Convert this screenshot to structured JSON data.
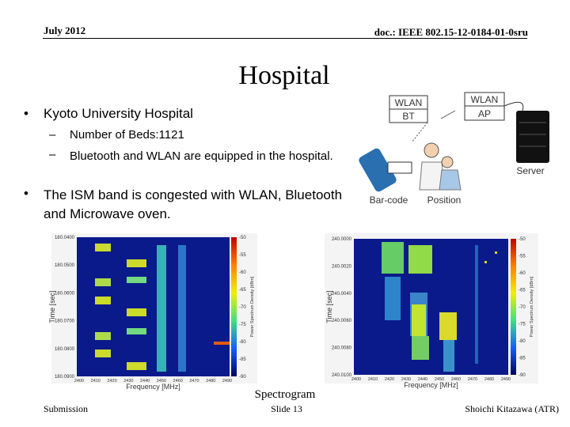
{
  "header": {
    "date": "July 2012",
    "doc": "doc.: IEEE 802.15-12-0184-01-0sru"
  },
  "title": "Hospital",
  "bullets": [
    {
      "text": "Kyoto University Hospital",
      "sub": [
        "Number of Beds:1121",
        "Bluetooth and WLAN are equipped in the hospital."
      ]
    },
    {
      "text": "The ISM band is congested with WLAN, Bluetooth and Microwave oven."
    }
  ],
  "diagram": {
    "terminal": [
      "WLAN",
      "BT"
    ],
    "ap": [
      "WLAN",
      "AP"
    ],
    "server": "Server",
    "barcode": "Bar-code",
    "position": "Position"
  },
  "spectrograms": [
    {
      "y_label": "Time [sec]",
      "x_label": "Frequency [MHz]",
      "colorbar_label": "Power Spectrum Density [dBm]",
      "yticks": [
        "180.0400",
        "180.0500",
        "180.0600",
        "180.0700",
        "180.0800",
        "180.0900"
      ],
      "xticks": [
        "2400",
        "2410",
        "2420",
        "2430",
        "2440",
        "2450",
        "2460",
        "2470",
        "2480",
        "2490"
      ],
      "colorbar_ticks": [
        "-50",
        "-55",
        "-60",
        "-65",
        "-70",
        "-75",
        "-80",
        "-85",
        "-90"
      ]
    },
    {
      "y_label": "Time [sec]",
      "x_label": "Frequency [MHz]",
      "colorbar_label": "Power Spectrum Density [dBm]",
      "yticks": [
        "240.0000",
        "240.0020",
        "240.0040",
        "240.0060",
        "240.0080",
        "240.0100"
      ],
      "xticks": [
        "2400",
        "2410",
        "2420",
        "2430",
        "2440",
        "2450",
        "2460",
        "2470",
        "2480",
        "2490"
      ],
      "colorbar_ticks": [
        "-50",
        "-55",
        "-60",
        "-65",
        "-70",
        "-75",
        "-80",
        "-85",
        "-90"
      ]
    }
  ],
  "caption": "Spectrogram",
  "footer": {
    "left": "Submission",
    "center": "Slide 13",
    "right": "Shoichi Kitazawa (ATR)"
  }
}
